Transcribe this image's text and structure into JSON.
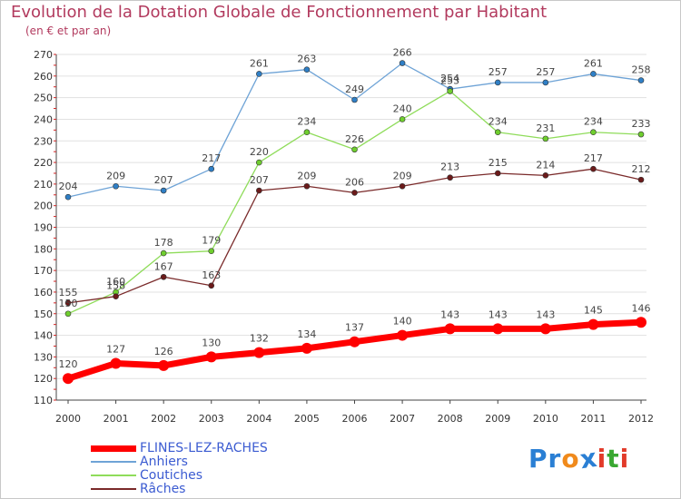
{
  "title": "Evolution de la Dotation Globale de Fonctionnement par Habitant",
  "subtitle": "(en € et par an)",
  "logo": {
    "text": "Proxiti",
    "letters": [
      "P",
      "r",
      "o",
      "x",
      "i",
      "t",
      "i"
    ],
    "colors": [
      "#2a7fd4",
      "#2a7fd4",
      "#f08a1c",
      "#2a7fd4",
      "#e23b2a",
      "#3aa832",
      "#e23b2a"
    ]
  },
  "chart_data": {
    "type": "line",
    "title": "Evolution de la Dotation Globale de Fonctionnement par Habitant",
    "subtitle": "(en € et par an)",
    "x": [
      "2000",
      "2001",
      "2002",
      "2003",
      "2004",
      "2005",
      "2006",
      "2007",
      "2008",
      "2009",
      "2010",
      "2011",
      "2012"
    ],
    "ylim": [
      110,
      270
    ],
    "yticks": [
      110,
      120,
      130,
      140,
      150,
      160,
      170,
      180,
      190,
      200,
      210,
      220,
      230,
      240,
      250,
      260,
      270
    ],
    "grid": "horizontal",
    "legend": "bottom-left",
    "series": [
      {
        "name": "FLINES-LEZ-RACHES",
        "color": "#ff0000",
        "point_color": "#ff0000",
        "width": 7,
        "values": [
          120,
          127,
          126,
          130,
          132,
          134,
          137,
          140,
          143,
          143,
          143,
          145,
          146
        ]
      },
      {
        "name": "Anhiers",
        "color": "#6ea3d6",
        "point_color": "#2f7fc6",
        "width": 1.3,
        "values": [
          204,
          209,
          207,
          217,
          261,
          263,
          249,
          266,
          254,
          257,
          257,
          261,
          258
        ]
      },
      {
        "name": "Coutiches",
        "color": "#8fdc5a",
        "point_color": "#6fce2e",
        "width": 1.3,
        "values": [
          150,
          160,
          178,
          179,
          220,
          234,
          226,
          240,
          253,
          234,
          231,
          234,
          233
        ]
      },
      {
        "name": "Râches",
        "color": "#7a2a2a",
        "point_color": "#6b1a1a",
        "width": 1.3,
        "values": [
          155,
          158,
          167,
          163,
          207,
          209,
          206,
          209,
          213,
          215,
          214,
          217,
          212
        ]
      }
    ]
  }
}
